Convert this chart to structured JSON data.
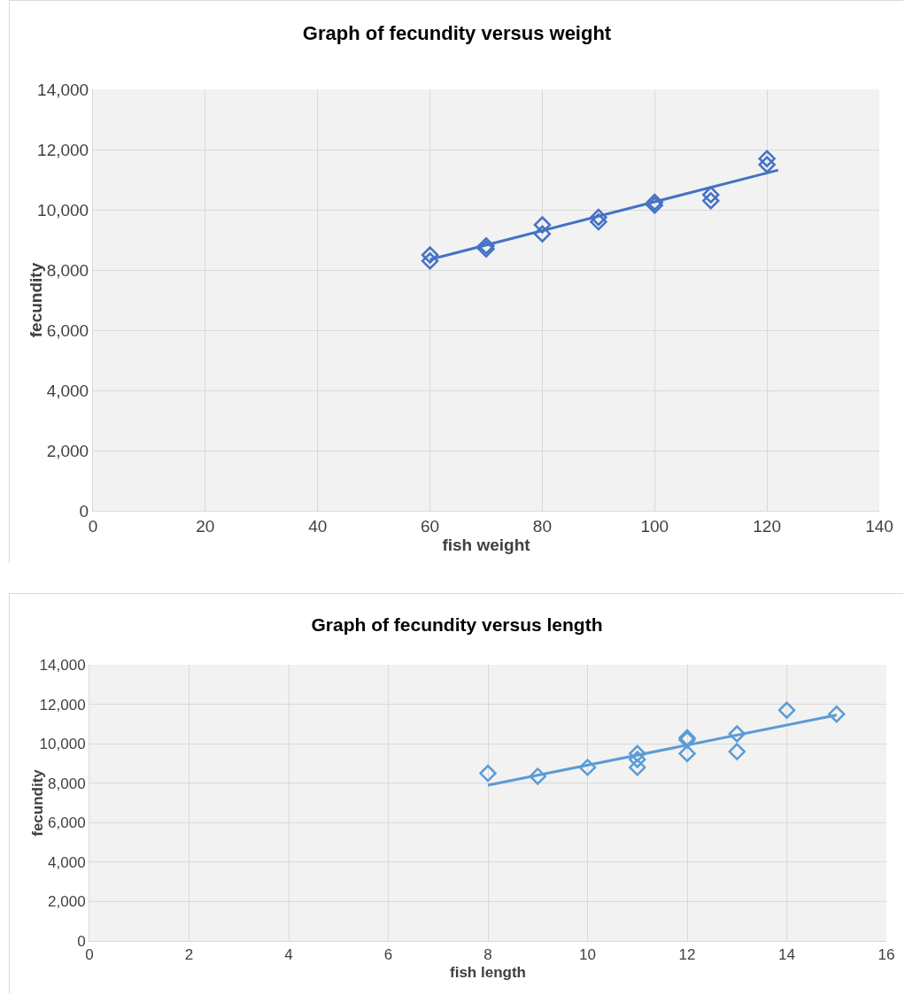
{
  "chart_data": [
    {
      "type": "scatter",
      "title": "Graph of fecundity versus weight",
      "xlabel": "fish weight",
      "ylabel": "fecundity",
      "grid": true,
      "xlim": [
        0,
        140
      ],
      "xticks": [
        0,
        20,
        40,
        60,
        80,
        100,
        120,
        140
      ],
      "ylim": [
        0,
        14000
      ],
      "yticks": [
        0,
        {
          "value": 2000,
          "label": "2,000"
        },
        {
          "value": 4000,
          "label": "4,000"
        },
        {
          "value": 6000,
          "label": "6,000"
        },
        {
          "value": 8000,
          "label": "8,000"
        },
        {
          "value": 10000,
          "label": "10,000"
        },
        {
          "value": 12000,
          "label": "12,000"
        },
        {
          "value": 14000,
          "label": "14,000"
        }
      ],
      "series": [
        {
          "marker": "diamond",
          "color": "#4472c4",
          "x": [
            60,
            60,
            70,
            70,
            80,
            80,
            90,
            90,
            100,
            100,
            110,
            110,
            120,
            120
          ],
          "values": [
            8500,
            8300,
            8800,
            8700,
            9500,
            9200,
            9750,
            9600,
            10250,
            10150,
            10500,
            10300,
            11700,
            11500
          ]
        },
        {
          "type": "line",
          "color": "#4472c4",
          "x": [
            60,
            122
          ],
          "values": [
            8350,
            11320
          ]
        }
      ]
    },
    {
      "type": "scatter",
      "title": "Graph of fecundity versus length",
      "xlabel": "fish length",
      "ylabel": "fecundity",
      "grid": true,
      "xlim": [
        0,
        16
      ],
      "xticks": [
        0,
        2,
        4,
        6,
        8,
        10,
        12,
        14,
        16
      ],
      "ylim": [
        0,
        14000
      ],
      "yticks": [
        0,
        {
          "value": 2000,
          "label": "2,000"
        },
        {
          "value": 4000,
          "label": "4,000"
        },
        {
          "value": 6000,
          "label": "6,000"
        },
        {
          "value": 8000,
          "label": "8,000"
        },
        {
          "value": 10000,
          "label": "10,000"
        },
        {
          "value": 12000,
          "label": "12,000"
        },
        {
          "value": 14000,
          "label": "14,000"
        }
      ],
      "series": [
        {
          "marker": "diamond",
          "color": "#5b9bd5",
          "x": [
            8,
            9,
            10,
            11,
            11,
            11,
            12,
            12,
            12,
            13,
            13,
            14,
            15
          ],
          "values": [
            8500,
            8350,
            8800,
            9500,
            9200,
            8800,
            10300,
            10200,
            9500,
            10500,
            9600,
            11700,
            11500
          ]
        },
        {
          "type": "line",
          "color": "#5b9bd5",
          "x": [
            8,
            15
          ],
          "values": [
            7900,
            11450
          ]
        }
      ]
    }
  ]
}
